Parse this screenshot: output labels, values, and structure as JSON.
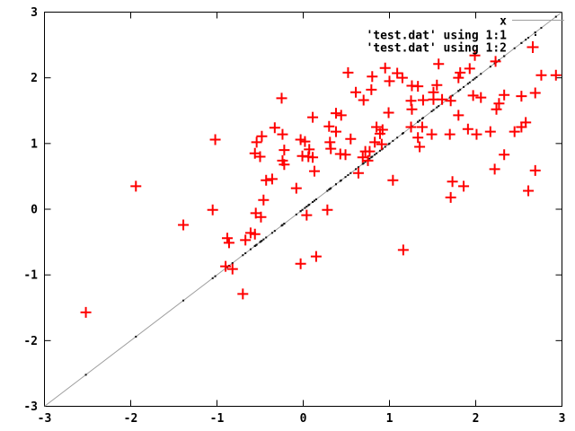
{
  "chart_data": {
    "type": "scatter",
    "title": "",
    "xlabel": "",
    "ylabel": "",
    "xlim": [
      -3,
      3
    ],
    "ylim": [
      -3,
      3
    ],
    "x_ticks": [
      "-3",
      "-2",
      "-1",
      "0",
      "1",
      "2",
      "3"
    ],
    "y_ticks": [
      "3",
      "2",
      "1",
      "0",
      "-1",
      "-2",
      "-3"
    ],
    "x_tick_values": [
      -3,
      -2,
      -1,
      0,
      1,
      2,
      3
    ],
    "y_tick_values": [
      3,
      2,
      1,
      0,
      -1,
      -2,
      -3
    ],
    "grid": false,
    "legend_position": "inside-top-right",
    "colors": {
      "background": "#ffffff",
      "border": "#000000",
      "function_line": "#9e9e9e",
      "dots_series": "#111111",
      "points_series": "#ff0000",
      "text": "#000000"
    },
    "series": [
      {
        "name": "x",
        "type": "line",
        "color": "#9e9e9e",
        "from": [
          -3,
          -3
        ],
        "to": [
          3,
          3
        ]
      },
      {
        "name": "'test.dat' using 1:1",
        "type": "dots",
        "color": "#111111",
        "derivation": "points (x_i, x_i) taken from column 1 of the same data as series 3"
      },
      {
        "name": "'test.dat' using 1:2",
        "type": "points",
        "marker": "plus",
        "marker_size": 13,
        "color": "#ff0000",
        "points": [
          [
            -0.25,
            1.69
          ],
          [
            0.52,
            2.08
          ],
          [
            0.61,
            1.78
          ],
          [
            0.7,
            1.66
          ],
          [
            0.8,
            2.02
          ],
          [
            0.95,
            2.15
          ],
          [
            0.79,
            1.82
          ],
          [
            0.11,
            1.4
          ],
          [
            0.38,
            1.46
          ],
          [
            0.44,
            1.43
          ],
          [
            0.3,
            1.26
          ],
          [
            0.38,
            1.18
          ],
          [
            -0.33,
            1.24
          ],
          [
            -0.48,
            1.11
          ],
          [
            -0.24,
            1.14
          ],
          [
            -0.03,
            1.06
          ],
          [
            0.02,
            1.03
          ],
          [
            0.85,
            1.25
          ],
          [
            0.92,
            1.21
          ],
          [
            0.89,
            1.15
          ],
          [
            0.83,
            1.02
          ],
          [
            0.91,
            0.99
          ],
          [
            -1.02,
            1.06
          ],
          [
            -0.54,
            1.02
          ],
          [
            -0.56,
            0.85
          ],
          [
            -0.5,
            0.8
          ],
          [
            -0.22,
            0.9
          ],
          [
            -0.22,
            0.68
          ],
          [
            -0.01,
            0.81
          ],
          [
            0.07,
            0.91
          ],
          [
            0.06,
            0.8
          ],
          [
            0.11,
            0.79
          ],
          [
            0.32,
            0.92
          ],
          [
            0.43,
            0.84
          ],
          [
            0.49,
            0.83
          ],
          [
            0.72,
            0.88
          ],
          [
            0.69,
            0.79
          ],
          [
            0.77,
            0.88
          ],
          [
            0.13,
            0.58
          ],
          [
            -0.43,
            0.44
          ],
          [
            -0.36,
            0.46
          ],
          [
            -0.08,
            0.32
          ],
          [
            -0.46,
            0.14
          ],
          [
            -0.55,
            -0.06
          ],
          [
            -0.49,
            -0.12
          ],
          [
            -0.61,
            -0.36
          ],
          [
            -0.56,
            -0.38
          ],
          [
            -0.88,
            -0.44
          ],
          [
            -0.86,
            -0.51
          ],
          [
            -0.67,
            -0.47
          ],
          [
            -0.9,
            -0.87
          ],
          [
            -0.82,
            -0.91
          ],
          [
            -1.05,
            -0.01
          ],
          [
            0.04,
            -0.09
          ],
          [
            0.28,
            -0.01
          ],
          [
            -0.03,
            -0.83
          ],
          [
            0.15,
            -0.72
          ],
          [
            0.64,
            0.55
          ],
          [
            0.55,
            1.07
          ],
          [
            0.31,
            1.02
          ],
          [
            -0.24,
            0.74
          ],
          [
            0.75,
            0.74
          ],
          [
            1.09,
            2.07
          ],
          [
            1.15,
            2.0
          ],
          [
            1.0,
            1.95
          ],
          [
            1.26,
            1.88
          ],
          [
            1.33,
            1.87
          ],
          [
            1.55,
            1.89
          ],
          [
            1.51,
            1.78
          ],
          [
            1.93,
            2.14
          ],
          [
            1.99,
            2.34
          ],
          [
            1.8,
            2.0
          ],
          [
            1.82,
            2.08
          ],
          [
            1.57,
            2.21
          ],
          [
            1.97,
            1.73
          ],
          [
            2.06,
            1.7
          ],
          [
            1.25,
            1.65
          ],
          [
            1.39,
            1.66
          ],
          [
            1.51,
            1.67
          ],
          [
            1.61,
            1.67
          ],
          [
            1.71,
            1.65
          ],
          [
            2.23,
            2.25
          ],
          [
            2.76,
            2.04
          ],
          [
            2.33,
            1.74
          ],
          [
            2.53,
            1.72
          ],
          [
            1.26,
            1.52
          ],
          [
            0.99,
            1.47
          ],
          [
            1.38,
            1.25
          ],
          [
            1.25,
            1.25
          ],
          [
            1.8,
            1.43
          ],
          [
            2.24,
            1.52
          ],
          [
            2.58,
            1.32
          ],
          [
            2.53,
            1.25
          ],
          [
            1.33,
            1.09
          ],
          [
            1.49,
            1.14
          ],
          [
            1.7,
            1.14
          ],
          [
            1.91,
            1.22
          ],
          [
            2.01,
            1.14
          ],
          [
            2.17,
            1.18
          ],
          [
            2.45,
            1.18
          ],
          [
            2.93,
            2.04
          ],
          [
            2.69,
            1.77
          ],
          [
            2.27,
            1.61
          ],
          [
            1.35,
            0.95
          ],
          [
            2.33,
            0.83
          ],
          [
            2.22,
            0.61
          ],
          [
            2.69,
            0.59
          ],
          [
            2.61,
            0.28
          ],
          [
            1.73,
            0.42
          ],
          [
            1.86,
            0.35
          ],
          [
            1.71,
            0.18
          ],
          [
            1.04,
            0.44
          ],
          [
            1.16,
            -0.62
          ],
          [
            -1.94,
            0.35
          ],
          [
            -1.39,
            -0.24
          ],
          [
            -2.52,
            -1.57
          ],
          [
            -0.7,
            -1.29
          ]
        ]
      }
    ]
  },
  "legend": {
    "entries": [
      {
        "label": "x"
      },
      {
        "label": "'test.dat' using 1:1"
      },
      {
        "label": "'test.dat' using 1:2"
      }
    ]
  }
}
